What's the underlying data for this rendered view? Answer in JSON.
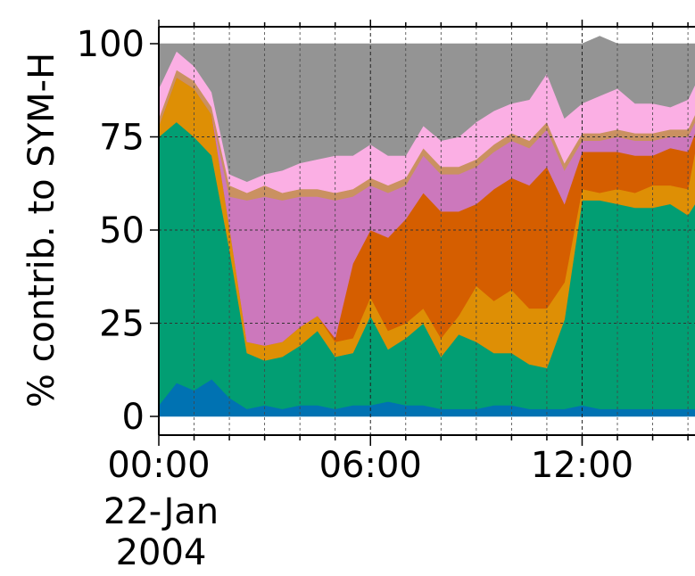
{
  "chart_data": {
    "type": "area",
    "ylabel": "% contrib. to SYM-H",
    "yticks": [
      "0",
      "25",
      "50",
      "75",
      "100"
    ],
    "ylim": [
      0,
      100
    ],
    "x_range_hours": [
      0,
      15.2
    ],
    "xticks": [
      {
        "hour": 0,
        "label": "00:00",
        "date_line1": "22-Jan",
        "date_line2": "2004"
      },
      {
        "hour": 6,
        "label": "06:00"
      },
      {
        "hour": 12,
        "label": "12:00"
      }
    ],
    "minor_gridlines_hours": [
      1,
      2,
      3,
      4,
      5,
      7,
      8,
      9,
      10,
      11,
      13,
      14,
      15
    ],
    "grid": "dashed",
    "stacking": "cumulative top boundary of each layer, percent",
    "x": [
      0,
      0.5,
      1,
      1.5,
      2,
      2.5,
      3,
      3.5,
      4,
      4.5,
      5,
      5.5,
      6,
      6.5,
      7,
      7.5,
      8,
      8.5,
      9,
      9.5,
      10,
      10.5,
      11,
      11.5,
      12,
      12.5,
      13,
      13.5,
      14,
      14.5,
      15,
      15.2
    ],
    "series": [
      {
        "color": "#0072b2",
        "values": [
          3,
          9,
          7,
          10,
          5,
          2,
          3,
          2,
          3,
          3,
          2,
          3,
          3,
          4,
          3,
          3,
          2,
          2,
          2,
          3,
          3,
          2,
          2,
          2,
          3,
          2,
          2,
          2,
          2,
          2,
          2,
          2
        ]
      },
      {
        "color": "#029e73",
        "values": [
          72,
          70,
          68,
          60,
          40,
          15,
          12,
          14,
          16,
          20,
          14,
          14,
          24,
          14,
          18,
          22,
          14,
          20,
          18,
          14,
          14,
          12,
          11,
          24,
          55,
          56,
          55,
          54,
          54,
          55,
          52,
          55
        ]
      },
      {
        "color": "#de8f05",
        "values": [
          3,
          12,
          13,
          11,
          6,
          3,
          4,
          4,
          5,
          4,
          4,
          4,
          5,
          5,
          4,
          4,
          5,
          5,
          15,
          14,
          17,
          15,
          16,
          10,
          3,
          2,
          4,
          4,
          6,
          5,
          7,
          14
        ]
      },
      {
        "color": "#d55e00",
        "values": [
          0,
          0,
          0,
          0,
          0,
          0,
          0,
          0,
          0,
          0,
          1,
          20,
          18,
          25,
          28,
          31,
          34,
          28,
          22,
          30,
          30,
          33,
          38,
          21,
          10,
          11,
          10,
          10,
          8,
          10,
          10,
          5
        ]
      },
      {
        "color": "#cc78bc",
        "values": [
          0,
          0,
          0,
          0,
          8,
          38,
          40,
          38,
          35,
          32,
          37,
          18,
          12,
          12,
          9,
          10,
          10,
          10,
          10,
          10,
          10,
          10,
          10,
          9,
          3,
          3,
          4,
          4,
          4,
          3,
          4,
          3
        ]
      },
      {
        "color": "#ca9161",
        "values": [
          2,
          2,
          2,
          2,
          3,
          2,
          3,
          2,
          2,
          2,
          2,
          2,
          2,
          2,
          2,
          2,
          2,
          2,
          2,
          2,
          2,
          2,
          2,
          2,
          2,
          2,
          2,
          2,
          2,
          2,
          2,
          2
        ]
      },
      {
        "color": "#fbafe4",
        "values": [
          8,
          5,
          4,
          4,
          3,
          3,
          3,
          6,
          7,
          8,
          10,
          9,
          9,
          8,
          6,
          6,
          7,
          8,
          10,
          9,
          8,
          11,
          13,
          12,
          8,
          10,
          11,
          8,
          8,
          6,
          8,
          8
        ]
      },
      {
        "color": "#949494",
        "values": [
          12,
          2,
          6,
          13,
          35,
          37,
          35,
          34,
          32,
          31,
          30,
          30,
          27,
          30,
          30,
          22,
          26,
          25,
          21,
          18,
          16,
          15,
          8,
          20,
          16,
          16,
          12,
          16,
          16,
          17,
          15,
          11
        ]
      }
    ]
  }
}
